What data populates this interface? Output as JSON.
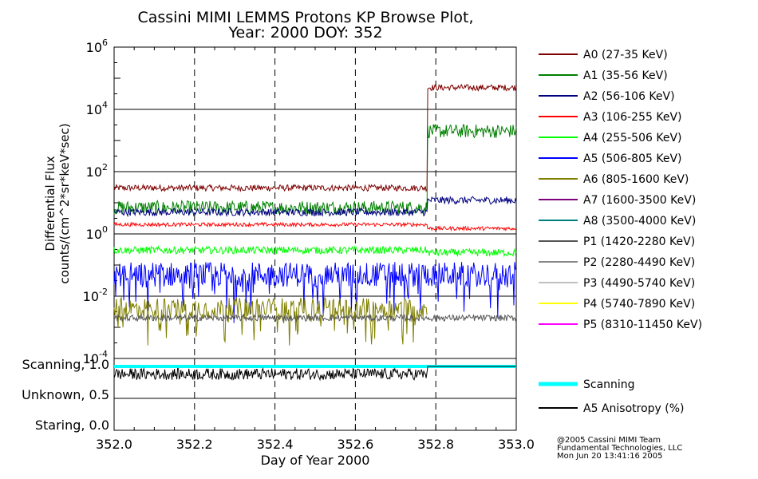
{
  "chart_data": {
    "type": "line",
    "title": [
      "Cassini MIMI LEMMS Protons KP Browse Plot,",
      "Year: 2000  DOY: 352"
    ],
    "xlabel": "Day of Year 2000",
    "ylabel": [
      "Differential Flux",
      "counts/(cm^2*sr*keV*sec)"
    ],
    "xlim": [
      352.0,
      353.0
    ],
    "ylim_log10": [
      -4,
      6
    ],
    "y_scale": "log",
    "xticks": [
      "352.0",
      "352.2",
      "352.4",
      "352.6",
      "352.8",
      "353.0"
    ],
    "xtick_values": [
      352.0,
      352.2,
      352.4,
      352.6,
      352.8,
      353.0
    ],
    "yticks": [
      {
        "base": "10",
        "exp": "6"
      },
      {
        "base": "10",
        "exp": "4"
      },
      {
        "base": "10",
        "exp": "2"
      },
      {
        "base": "10",
        "exp": "0"
      },
      {
        "base": "10",
        "exp": "-2"
      },
      {
        "base": "10",
        "exp": "-4"
      }
    ],
    "ytick_exponents": [
      6,
      4,
      2,
      0,
      -2,
      -4
    ],
    "grid": true,
    "legend_position": "right",
    "step_time": 352.78,
    "series": [
      {
        "name": "A0 (27-35 KeV)",
        "color": "#7f0000",
        "before": 30,
        "after": 50000,
        "noise": 0.1
      },
      {
        "name": "A1 (35-56 KeV)",
        "color": "#008000",
        "before": 7,
        "after": 2000,
        "noise": 0.22
      },
      {
        "name": "A2 (56-106 KeV)",
        "color": "#00007f",
        "before": 5,
        "after": 12,
        "noise": 0.12
      },
      {
        "name": "A3 (106-255 KeV)",
        "color": "#ff0000",
        "before": 2,
        "after": 1.5,
        "noise": 0.06
      },
      {
        "name": "A4 (255-506 KeV)",
        "color": "#00ff00",
        "before": 0.3,
        "after": 0.25,
        "noise": 0.12
      },
      {
        "name": "A5 (506-805 KeV)",
        "color": "#0000ff",
        "before": 0.05,
        "after": 0.05,
        "noise": 0.4
      },
      {
        "name": "A6 (805-1600 KeV)",
        "color": "#7f7f00",
        "before": 0.004,
        "after": null,
        "noise": 0.35
      },
      {
        "name": "A7 (1600-3500 KeV)",
        "color": "#7f007f",
        "before": null,
        "after": null,
        "noise": 0
      },
      {
        "name": "A8 (3500-4000 KeV)",
        "color": "#007f7f",
        "before": null,
        "after": null,
        "noise": 0
      },
      {
        "name": "P1 (1420-2280 KeV)",
        "color": "#555555",
        "before": 0.002,
        "after": 0.002,
        "noise": 0.1
      },
      {
        "name": "P2 (2280-4490 KeV)",
        "color": "#888888",
        "before": null,
        "after": null,
        "noise": 0
      },
      {
        "name": "P3 (4490-5740 KeV)",
        "color": "#c0c0c0",
        "before": null,
        "after": null,
        "noise": 0
      },
      {
        "name": "P4 (5740-7890 KeV)",
        "color": "#ffff00",
        "before": 0.0001,
        "after": 0.0001,
        "noise": 0
      },
      {
        "name": "P5 (8310-11450 KeV)",
        "color": "#ff00ff",
        "before": null,
        "after": null,
        "noise": 0
      }
    ],
    "lower_panel": {
      "yticks": [
        "Scanning, 1.0",
        "Unknown, 0.5",
        "Staring, 0.0"
      ],
      "ytick_values": [
        1.0,
        0.5,
        0.0
      ],
      "series": [
        {
          "name": "Scanning",
          "color": "#00ffff",
          "value": 1.0
        },
        {
          "name": "A5 Anisotropy (%)",
          "color": "#000000",
          "before": 0.88,
          "after": 1.0
        }
      ]
    }
  },
  "footer": [
    "@2005 Cassini MIMI Team",
    "Fundamental Technologies, LLC",
    "Mon Jun 20 13:41:16 2005"
  ]
}
